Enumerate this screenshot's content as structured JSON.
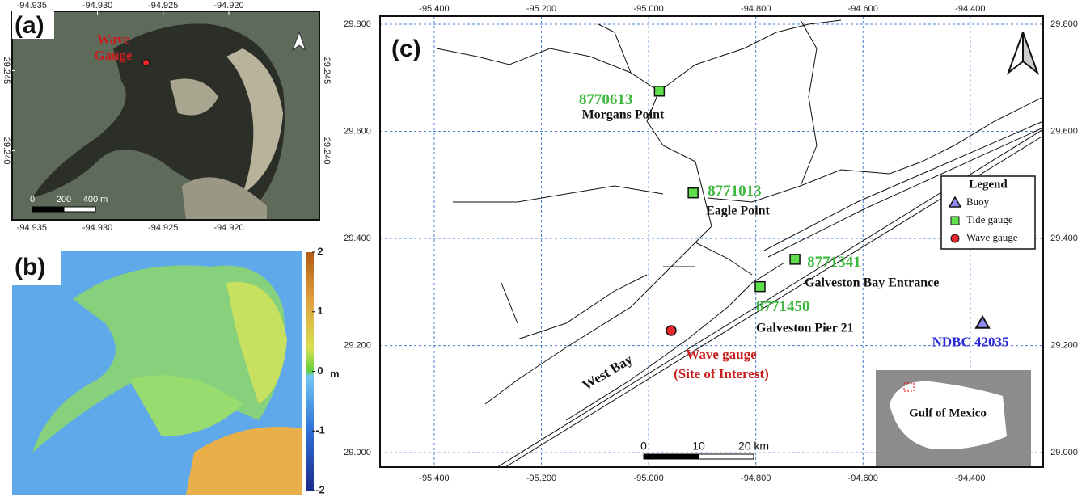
{
  "panel_a": {
    "label": "(a)",
    "xlim": [
      -94.9365,
      -94.9131
    ],
    "ylim": [
      29.2357,
      29.2487
    ],
    "xticks": [
      -94.935,
      {
        "value": -94.93,
        "label": "-94.930"
      },
      -94.925,
      {
        "value": -94.92,
        "label": "-94.920"
      }
    ],
    "yticks": [
      29.245,
      {
        "value": 29.24,
        "label": "29.240"
      }
    ],
    "gauge": {
      "label": [
        "Wave",
        "Gauge"
      ],
      "lon": -94.9263,
      "lat": 29.2455,
      "color": "#e8262b"
    },
    "scale_bar": [
      0,
      200,
      {
        "value": 400,
        "label": "400 m"
      }
    ]
  },
  "panel_b": {
    "label": "(b)",
    "colorbar": {
      "lim": [
        -2,
        2
      ],
      "ticks": [
        2,
        1,
        0,
        -1,
        -2
      ],
      "unit": "m"
    }
  },
  "panel_c": {
    "label": "(c)",
    "xlim": [
      -95.501,
      -94.264
    ],
    "ylim": [
      28.973,
      29.815
    ],
    "grid": true,
    "xticks": [
      {
        "value": -95.4,
        "label": "-95.400"
      },
      {
        "value": -95.2,
        "label": "-95.200"
      },
      {
        "value": -95,
        "label": "-95.000"
      },
      {
        "value": -94.8,
        "label": "-94.800"
      },
      {
        "value": -94.6,
        "label": "-94.600"
      },
      {
        "value": -94.4,
        "label": "-94.400"
      }
    ],
    "yticks": [
      {
        "value": 29.8,
        "label": "29.800"
      },
      {
        "value": 29.6,
        "label": "29.600"
      },
      {
        "value": 29.4,
        "label": "29.400"
      },
      {
        "value": 29.2,
        "label": "29.200"
      },
      {
        "value": 29,
        "label": "29.000"
      }
    ],
    "stations": [
      {
        "id": "8770613",
        "name": "Morgans Point",
        "lon": -94.98,
        "lat": 29.675
      },
      {
        "id": "8771013",
        "name": "Eagle Point",
        "lon": -94.917,
        "lat": 29.485
      },
      {
        "id": "8771341",
        "name": "Galveston Bay Entrance",
        "lon": -94.727,
        "lat": 29.361
      },
      {
        "id": "8771450",
        "name": "Galveston Pier 21",
        "lon": -94.792,
        "lat": 29.31
      }
    ],
    "wave_gauge": {
      "label": [
        "Wave gauge",
        "(Site of Interest)"
      ],
      "lon": -94.958,
      "lat": 29.228
    },
    "buoy": {
      "label": "NDBC 42035",
      "lon": -94.377,
      "lat": 29.242
    },
    "legend": {
      "title": "Legend",
      "items": [
        {
          "name": "Buoy",
          "color": "#8e8cf0"
        },
        {
          "name": "Tide gauge",
          "color": "#5ee04a"
        },
        {
          "name": "Wave gauge",
          "color": "#e8262b"
        }
      ]
    },
    "place_labels": [
      "West Bay",
      "Gulf of Mexico"
    ],
    "scale_bar": [
      0,
      10,
      {
        "value": 20,
        "label": "20 km"
      }
    ]
  }
}
